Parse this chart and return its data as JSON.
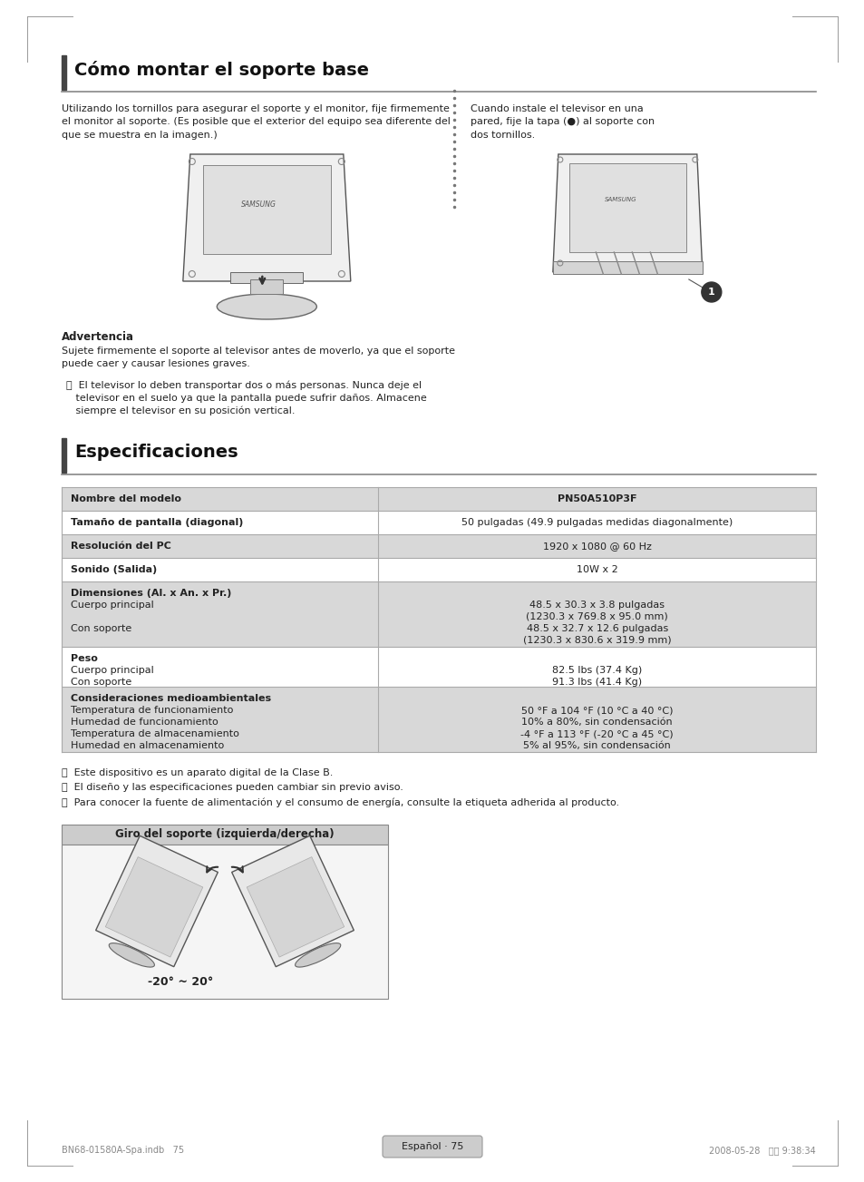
{
  "page_bg": "#ffffff",
  "section1_title": "Cómo montar el soporte base",
  "col1_text": "Utilizando los tornillos para asegurar el soporte y el monitor, fije firmemente\nel monitor al soporte. (Es posible que el exterior del equipo sea diferente del\nque se muestra en la imagen.)",
  "col2_text": "Cuando instale el televisor en una\npared, fije la tapa (●) al soporte con\ndos tornillos.",
  "warning_title": "Advertencia",
  "warning_text": "Sujete firmemente el soporte al televisor antes de moverlo, ya que el soporte\npuede caer y causar lesiones graves.",
  "bullet1_line1": "⟢  El televisor lo deben transportar dos o más personas. Nunca deje el",
  "bullet1_line2": "   televisor en el suelo ya que la pantalla puede sufrir daños. Almacene",
  "bullet1_line3": "   siempre el televisor en su posición vertical.",
  "section2_title": "Especificaciones",
  "table_rows": [
    {
      "label": [
        "Nombre del modelo"
      ],
      "value": [
        "PN50A510P3F"
      ],
      "bold_label": true,
      "bold_value": true,
      "shaded": true
    },
    {
      "label": [
        "Tamaño de pantalla (diagonal)"
      ],
      "value": [
        "50 pulgadas (49.9 pulgadas medidas diagonalmente)"
      ],
      "bold_label": true,
      "bold_value": false,
      "shaded": false
    },
    {
      "label": [
        "Resolución del PC"
      ],
      "value": [
        "1920 x 1080 @ 60 Hz"
      ],
      "bold_label": true,
      "bold_value": false,
      "shaded": true
    },
    {
      "label": [
        "Sonido (Salida)"
      ],
      "value": [
        "10W x 2"
      ],
      "bold_label": true,
      "bold_value": false,
      "shaded": false
    },
    {
      "label": [
        "Dimensiones (Al. x An. x Pr.)",
        "Cuerpo principal",
        "",
        "Con soporte"
      ],
      "value": [
        "",
        "48.5 x 30.3 x 3.8 pulgadas",
        "(1230.3 x 769.8 x 95.0 mm)",
        "48.5 x 32.7 x 12.6 pulgadas",
        "(1230.3 x 830.6 x 319.9 mm)"
      ],
      "bold_label": true,
      "bold_value": false,
      "shaded": true
    },
    {
      "label": [
        "Peso",
        "Cuerpo principal",
        "Con soporte"
      ],
      "value": [
        "",
        "82.5 lbs (37.4 Kg)",
        "91.3 lbs (41.4 Kg)"
      ],
      "bold_label": true,
      "bold_value": false,
      "shaded": false
    },
    {
      "label": [
        "Consideraciones medioambientales",
        "Temperatura de funcionamiento",
        "Humedad de funcionamiento",
        "Temperatura de almacenamiento",
        "Humedad en almacenamiento"
      ],
      "value": [
        "",
        "50 °F a 104 °F (10 °C a 40 °C)",
        "10% a 80%, sin condensación",
        "-4 °F a 113 °F (-20 °C a 45 °C)",
        "5% al 95%, sin condensación"
      ],
      "bold_label": true,
      "bold_value": false,
      "shaded": true
    }
  ],
  "bullets_bottom": [
    "⟢  Este dispositivo es un aparato digital de la Clase B.",
    "⟢  El diseño y las especificaciones pueden cambiar sin previo aviso.",
    "⟢  Para conocer la fuente de alimentación y el consumo de energía, consulte la etiqueta adherida al producto."
  ],
  "swivel_box_title": "Giro del soporte (izquierda/derecha)",
  "swivel_angle_text": "-20° ~ 20°",
  "footer_left": "BN68-01580A-Spa.indb   75",
  "footer_right": "2008-05-28   오후 9:38:34",
  "footer_center": "Español · 75",
  "table_shaded_bg": "#d8d8d8",
  "table_border": "#aaaaaa",
  "text_color": "#222222"
}
